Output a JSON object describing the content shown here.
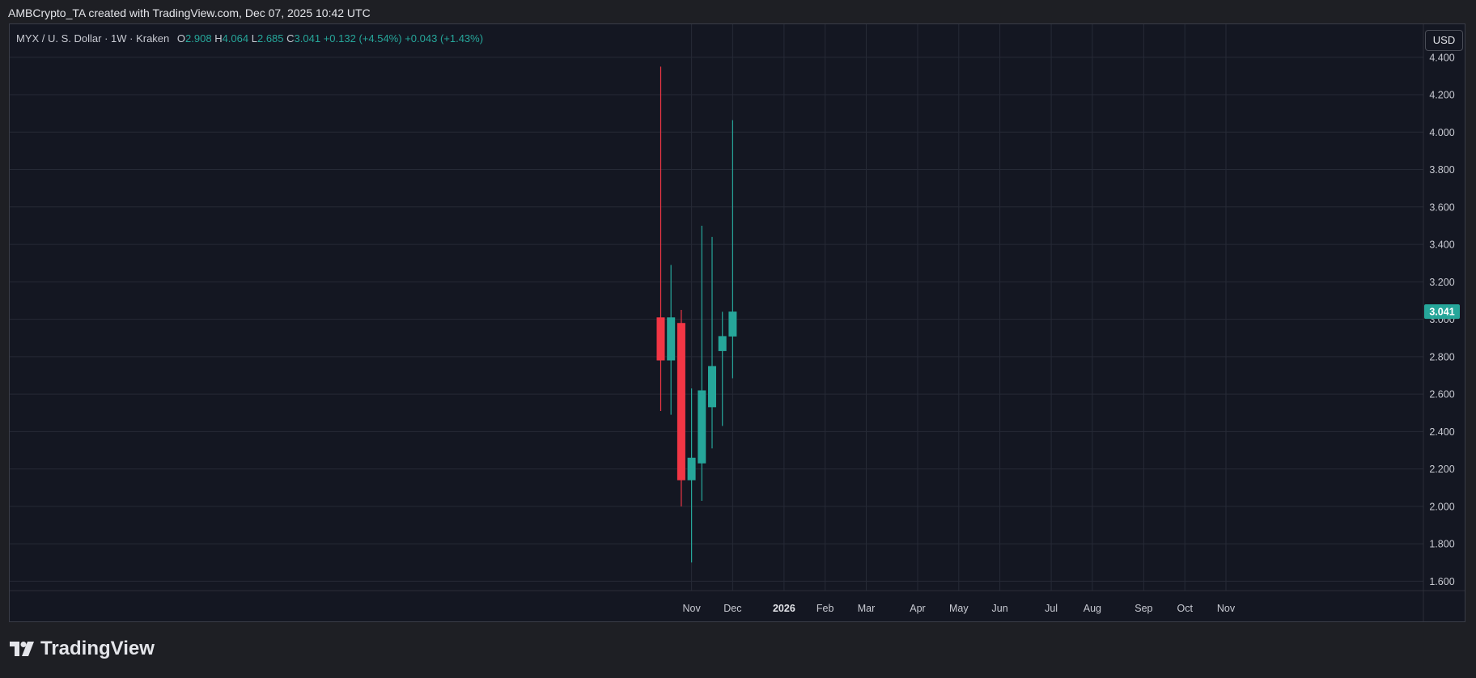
{
  "header": {
    "caption": "AMBCrypto_TA created with TradingView.com, Dec 07, 2025 10:42 UTC"
  },
  "legend": {
    "symbol": "MYX / U. S. Dollar · 1W · Kraken",
    "open_label": "O",
    "open": "2.908",
    "high_label": "H",
    "high": "4.064",
    "low_label": "L",
    "low": "2.685",
    "close_label": "C",
    "close": "3.041",
    "change": "+0.132 (+4.54%)",
    "change2": "+0.043 (+1.43%)"
  },
  "currency_button": "USD",
  "logo_text": "TradingView",
  "colors": {
    "up": "#26a69a",
    "down": "#f23645",
    "background": "#141722",
    "grid": "#262a36",
    "axis_text": "#c8cad2",
    "last_price_bg": "#26a69a"
  },
  "chart_data": {
    "type": "candlestick",
    "symbol": "MYX / U. S. Dollar",
    "interval": "1W",
    "exchange": "Kraken",
    "currency": "USD",
    "ylim": [
      1.55,
      4.52
    ],
    "y_ticks": [
      "1.600",
      "1.800",
      "2.000",
      "2.200",
      "2.400",
      "2.600",
      "2.800",
      "3.000",
      "3.200",
      "3.400",
      "3.600",
      "3.800",
      "4.000",
      "4.200",
      "4.400"
    ],
    "x_ticks": [
      {
        "label": "Nov",
        "slot": 8.0,
        "bold": false
      },
      {
        "label": "Dec",
        "slot": 12.0,
        "bold": false
      },
      {
        "label": "2026",
        "slot": 17.0,
        "bold": true
      },
      {
        "label": "Feb",
        "slot": 21.0,
        "bold": false
      },
      {
        "label": "Mar",
        "slot": 25.0,
        "bold": false
      },
      {
        "label": "Apr",
        "slot": 30.0,
        "bold": false
      },
      {
        "label": "May",
        "slot": 34.0,
        "bold": false
      },
      {
        "label": "Jun",
        "slot": 38.0,
        "bold": false
      },
      {
        "label": "Jul",
        "slot": 43.0,
        "bold": false
      },
      {
        "label": "Aug",
        "slot": 47.0,
        "bold": false
      },
      {
        "label": "Sep",
        "slot": 52.0,
        "bold": false
      },
      {
        "label": "Oct",
        "slot": 56.0,
        "bold": false
      },
      {
        "label": "Nov",
        "slot": 60.0,
        "bold": false
      }
    ],
    "candles": [
      {
        "slot": 5,
        "open": 3.01,
        "high": 4.35,
        "low": 2.51,
        "close": 2.78
      },
      {
        "slot": 6,
        "open": 2.78,
        "high": 3.29,
        "low": 2.49,
        "close": 3.01
      },
      {
        "slot": 7,
        "open": 2.98,
        "high": 3.05,
        "low": 2.0,
        "close": 2.14
      },
      {
        "slot": 8,
        "open": 2.14,
        "high": 2.63,
        "low": 1.7,
        "close": 2.26
      },
      {
        "slot": 9,
        "open": 2.23,
        "high": 3.5,
        "low": 2.03,
        "close": 2.62
      },
      {
        "slot": 10,
        "open": 2.53,
        "high": 3.44,
        "low": 2.31,
        "close": 2.75
      },
      {
        "slot": 11,
        "open": 2.83,
        "high": 3.04,
        "low": 2.43,
        "close": 2.91
      },
      {
        "slot": 12,
        "open": 2.908,
        "high": 4.064,
        "low": 2.685,
        "close": 3.041
      }
    ],
    "last_price": "3.041"
  }
}
